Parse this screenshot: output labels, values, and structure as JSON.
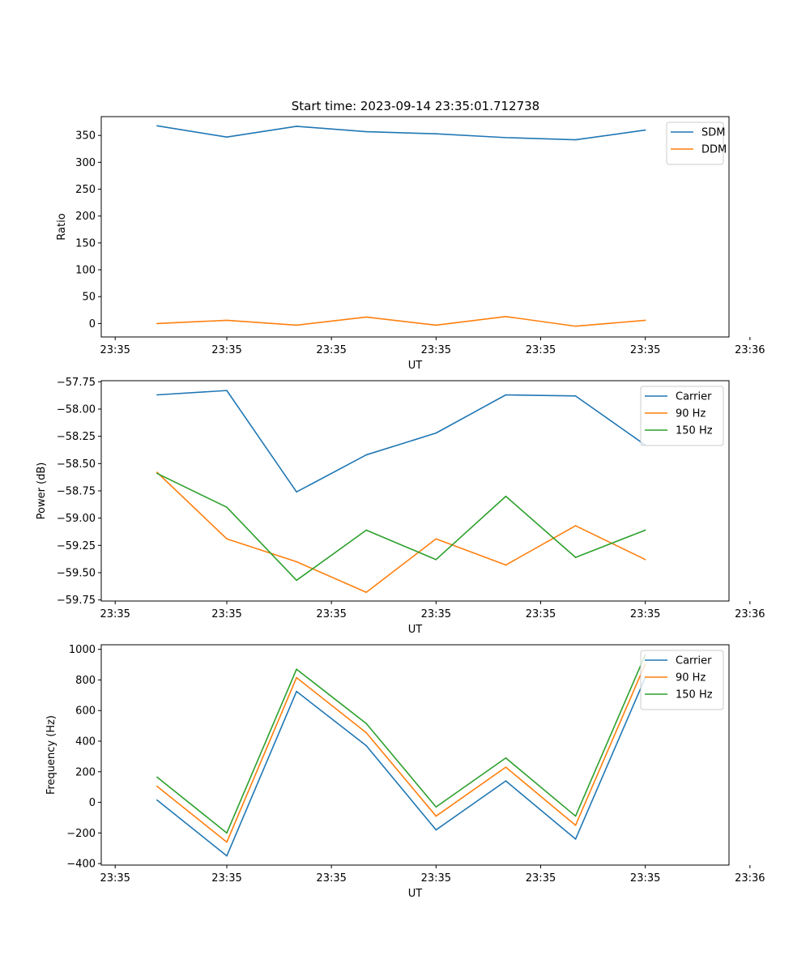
{
  "title": "Start time: 2023-09-14 23:35:01.712738",
  "colors": {
    "blue": "#1f77b4",
    "orange": "#ff7f0e",
    "green": "#2ca02c",
    "frame": "#000000",
    "legend_border": "#cccccc"
  },
  "chart_data": [
    {
      "type": "line",
      "name": "ratio",
      "title": "Start time: 2023-09-14 23:35:01.712738",
      "xlabel": "UT",
      "ylabel": "Ratio",
      "legend_position": "top-right",
      "x": [
        1,
        2,
        3,
        4,
        5,
        6,
        7,
        8
      ],
      "xlim": [
        0.2,
        9.2
      ],
      "xticks": [
        0.4,
        2.0,
        3.5,
        5.0,
        6.5,
        8.0,
        9.5
      ],
      "xtick_labels": [
        "23:35",
        "23:35",
        "23:35",
        "23:35",
        "23:35",
        "23:35",
        "23:36"
      ],
      "ylim": [
        -25,
        385
      ],
      "yticks": [
        0,
        50,
        100,
        150,
        200,
        250,
        300,
        350
      ],
      "ytick_labels": [
        "0",
        "50",
        "100",
        "150",
        "200",
        "250",
        "300",
        "350"
      ],
      "series": [
        {
          "name": "SDM",
          "color": "#1f77b4",
          "values": [
            368,
            347,
            367,
            357,
            353,
            346,
            342,
            360
          ]
        },
        {
          "name": "DDM",
          "color": "#ff7f0e",
          "values": [
            0,
            6,
            -3,
            12,
            -3,
            13,
            -5,
            6
          ]
        }
      ]
    },
    {
      "type": "line",
      "name": "power",
      "title": "",
      "xlabel": "UT",
      "ylabel": "Power (dB)",
      "legend_position": "top-right",
      "x": [
        1,
        2,
        3,
        4,
        5,
        6,
        7,
        8
      ],
      "xlim": [
        0.2,
        9.2
      ],
      "xticks": [
        0.4,
        2.0,
        3.5,
        5.0,
        6.5,
        8.0,
        9.5
      ],
      "xtick_labels": [
        "23:35",
        "23:35",
        "23:35",
        "23:35",
        "23:35",
        "23:35",
        "23:36"
      ],
      "ylim": [
        -59.76,
        -57.74
      ],
      "yticks": [
        -59.75,
        -59.5,
        -59.25,
        -59.0,
        -58.75,
        -58.5,
        -58.25,
        -58.0,
        -57.75
      ],
      "ytick_labels": [
        "−59.75",
        "−59.50",
        "−59.25",
        "−59.00",
        "−58.75",
        "−58.50",
        "−58.25",
        "−58.00",
        "−57.75"
      ],
      "series": [
        {
          "name": "Carrier",
          "color": "#1f77b4",
          "values": [
            -57.87,
            -57.83,
            -58.76,
            -58.42,
            -58.22,
            -57.87,
            -57.88,
            -58.33
          ]
        },
        {
          "name": "90 Hz",
          "color": "#ff7f0e",
          "values": [
            -58.58,
            -59.19,
            -59.4,
            -59.68,
            -59.19,
            -59.43,
            -59.07,
            -59.38
          ]
        },
        {
          "name": "150 Hz",
          "color": "#2ca02c",
          "values": [
            -58.59,
            -58.9,
            -59.57,
            -59.11,
            -59.38,
            -58.8,
            -59.36,
            -59.11
          ]
        }
      ]
    },
    {
      "type": "line",
      "name": "frequency",
      "title": "",
      "xlabel": "UT",
      "ylabel": "Frequency (Hz)",
      "legend_position": "top-right",
      "x": [
        1,
        2,
        3,
        4,
        5,
        6,
        7,
        8
      ],
      "xlim": [
        0.2,
        9.2
      ],
      "xticks": [
        0.4,
        2.0,
        3.5,
        5.0,
        6.5,
        8.0,
        9.5
      ],
      "xtick_labels": [
        "23:35",
        "23:35",
        "23:35",
        "23:35",
        "23:35",
        "23:35",
        "23:36"
      ],
      "ylim": [
        -410,
        1030
      ],
      "yticks": [
        -400,
        -200,
        0,
        200,
        400,
        600,
        800,
        1000
      ],
      "ytick_labels": [
        "−400",
        "−200",
        "0",
        "200",
        "400",
        "600",
        "800",
        "1000"
      ],
      "series": [
        {
          "name": "Carrier",
          "color": "#1f77b4",
          "values": [
            15,
            -350,
            725,
            370,
            -180,
            140,
            -240,
            815
          ]
        },
        {
          "name": "90 Hz",
          "color": "#ff7f0e",
          "values": [
            105,
            -260,
            815,
            455,
            -90,
            230,
            -150,
            905
          ]
        },
        {
          "name": "150 Hz",
          "color": "#2ca02c",
          "values": [
            165,
            -200,
            870,
            515,
            -30,
            290,
            -90,
            965
          ]
        }
      ]
    }
  ]
}
